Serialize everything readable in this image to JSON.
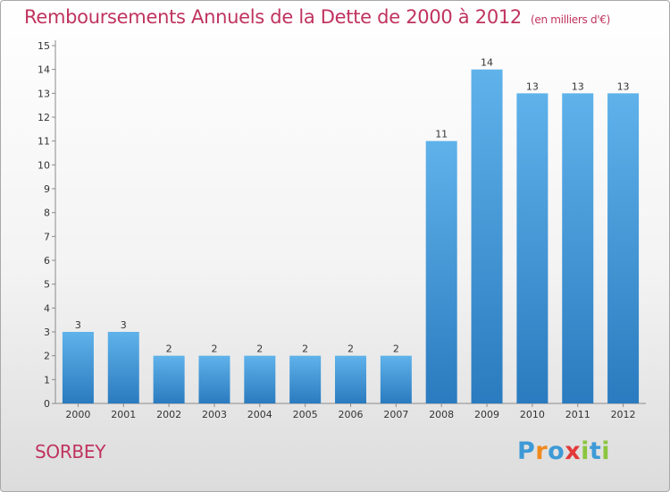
{
  "header": {
    "title": "Remboursements Annuels de la Dette de 2000 à 2012",
    "unit": "(en milliers d'€)"
  },
  "footer": {
    "commune": "SORBEY",
    "logo": {
      "text": "Proxiti",
      "colors": [
        "#3d9ad6",
        "#f08a1c",
        "#3d9ad6",
        "#e23a3a",
        "#8bc53f",
        "#3d9ad6",
        "#8bc53f"
      ]
    }
  },
  "chart_data": {
    "type": "bar",
    "title": "Remboursements Annuels de la Dette de 2000 à 2012",
    "subtitle": "(en milliers d'€)",
    "categories": [
      "2000",
      "2001",
      "2002",
      "2003",
      "2004",
      "2005",
      "2006",
      "2007",
      "2008",
      "2009",
      "2010",
      "2011",
      "2012"
    ],
    "values": [
      3,
      3,
      2,
      2,
      2,
      2,
      2,
      2,
      11,
      14,
      13,
      13,
      13
    ],
    "xlabel": "",
    "ylabel": "",
    "ylim": [
      0,
      15
    ],
    "yticks": [
      0,
      1,
      2,
      3,
      4,
      5,
      6,
      7,
      8,
      9,
      10,
      11,
      12,
      13,
      14,
      15
    ],
    "grid": false,
    "data_labels": true,
    "bar_color_light": "#5fb2ea",
    "bar_color_dark": "#2a7bbf",
    "axis_color": "#8a8a8a",
    "text_color": "#333333"
  }
}
